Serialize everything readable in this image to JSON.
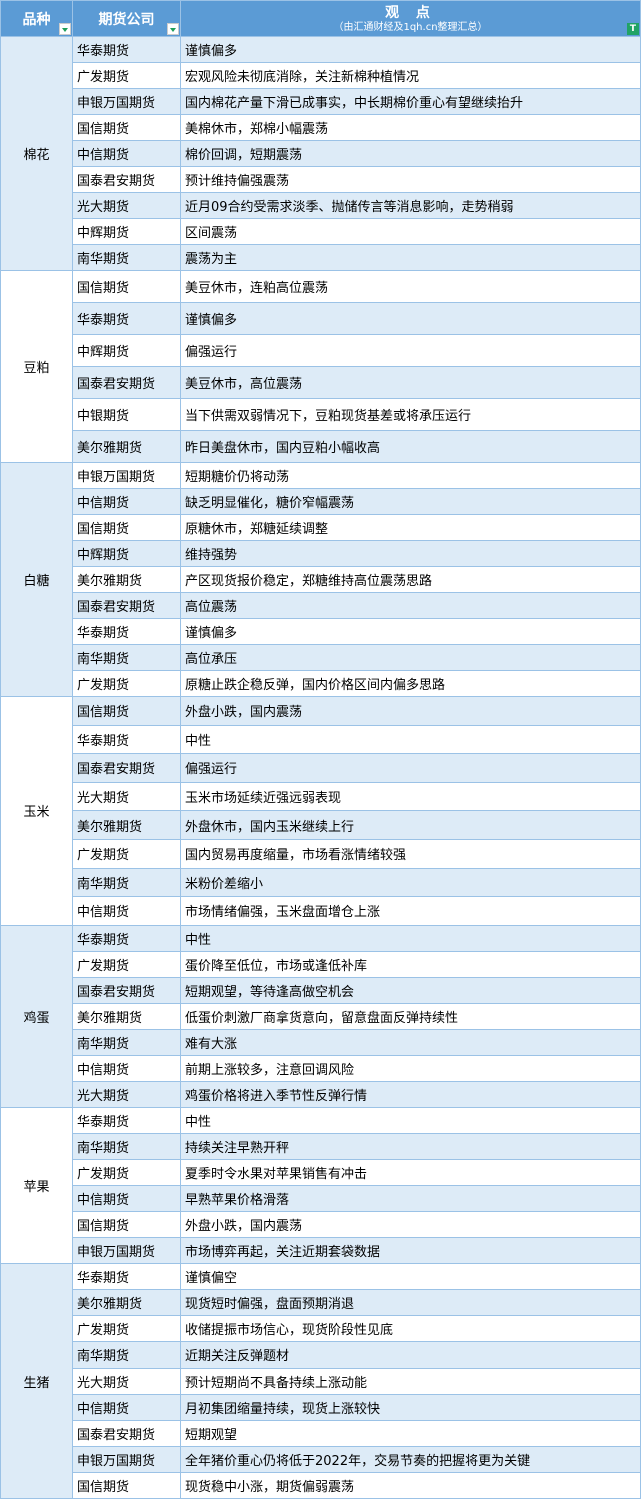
{
  "header": {
    "col_variety": "品种",
    "col_company": "期货公司",
    "col_view": "观    点",
    "col_view_sub": "（由汇通财经及1qh.cn整理汇总）",
    "filter_icon_text": "T"
  },
  "colors": {
    "header_bg": "#5b9bd5",
    "row_alt": "#ddebf7",
    "border": "#9bc2e6"
  },
  "groups": [
    {
      "variety": "棉花",
      "rows": [
        {
          "company": "华泰期货",
          "view": "谨慎偏多"
        },
        {
          "company": "广发期货",
          "view": "宏观风险未彻底消除，关注新棉种植情况"
        },
        {
          "company": "申银万国期货",
          "view": "国内棉花产量下滑已成事实，中长期棉价重心有望继续抬升"
        },
        {
          "company": "国信期货",
          "view": "美棉休市，郑棉小幅震荡"
        },
        {
          "company": "中信期货",
          "view": "棉价回调，短期震荡"
        },
        {
          "company": "国泰君安期货",
          "view": "预计维持偏强震荡"
        },
        {
          "company": "光大期货",
          "view": "近月09合约受需求淡季、抛储传言等消息影响，走势稍弱"
        },
        {
          "company": "中辉期货",
          "view": "区间震荡"
        },
        {
          "company": "南华期货",
          "view": "震荡为主"
        }
      ]
    },
    {
      "variety": "豆粕",
      "rows": [
        {
          "company": "国信期货",
          "view": "美豆休市，连粕高位震荡"
        },
        {
          "company": "华泰期货",
          "view": "谨慎偏多"
        },
        {
          "company": "中辉期货",
          "view": "偏强运行"
        },
        {
          "company": "国泰君安期货",
          "view": "美豆休市，高位震荡"
        },
        {
          "company": "中银期货",
          "view": "当下供需双弱情况下，豆粕现货基差或将承压运行"
        },
        {
          "company": "美尔雅期货",
          "view": "昨日美盘休市，国内豆粕小幅收高"
        }
      ]
    },
    {
      "variety": "白糖",
      "rows": [
        {
          "company": "申银万国期货",
          "view": "短期糖价仍将动荡"
        },
        {
          "company": "中信期货",
          "view": "缺乏明显催化，糖价窄幅震荡"
        },
        {
          "company": "国信期货",
          "view": "原糖休市，郑糖延续调整"
        },
        {
          "company": "中辉期货",
          "view": "维持强势"
        },
        {
          "company": "美尔雅期货",
          "view": "产区现货报价稳定，郑糖维持高位震荡思路"
        },
        {
          "company": "国泰君安期货",
          "view": "高位震荡"
        },
        {
          "company": "华泰期货",
          "view": "谨慎偏多"
        },
        {
          "company": "南华期货",
          "view": "高位承压"
        },
        {
          "company": "广发期货",
          "view": "原糖止跌企稳反弹，国内价格区间内偏多思路"
        }
      ]
    },
    {
      "variety": "玉米",
      "rows": [
        {
          "company": "国信期货",
          "view": "外盘小跌，国内震荡"
        },
        {
          "company": "华泰期货",
          "view": "中性"
        },
        {
          "company": "国泰君安期货",
          "view": "偏强运行"
        },
        {
          "company": "光大期货",
          "view": "玉米市场延续近强远弱表现"
        },
        {
          "company": "美尔雅期货",
          "view": "外盘休市，国内玉米继续上行"
        },
        {
          "company": "广发期货",
          "view": "国内贸易再度缩量，市场看涨情绪较强"
        },
        {
          "company": "南华期货",
          "view": "米粉价差缩小"
        },
        {
          "company": "中信期货",
          "view": "市场情绪偏强，玉米盘面增仓上涨"
        }
      ]
    },
    {
      "variety": "鸡蛋",
      "rows": [
        {
          "company": "华泰期货",
          "view": "中性"
        },
        {
          "company": "广发期货",
          "view": "蛋价降至低位，市场或逢低补库"
        },
        {
          "company": "国泰君安期货",
          "view": "短期观望，等待逢高做空机会"
        },
        {
          "company": "美尔雅期货",
          "view": "低蛋价刺激厂商拿货意向，留意盘面反弹持续性"
        },
        {
          "company": "南华期货",
          "view": "难有大涨"
        },
        {
          "company": "中信期货",
          "view": "前期上涨较多，注意回调风险"
        },
        {
          "company": "光大期货",
          "view": "鸡蛋价格将进入季节性反弹行情"
        }
      ]
    },
    {
      "variety": "苹果",
      "rows": [
        {
          "company": "华泰期货",
          "view": "中性"
        },
        {
          "company": "南华期货",
          "view": "持续关注早熟开秤"
        },
        {
          "company": "广发期货",
          "view": "夏季时令水果对苹果销售有冲击"
        },
        {
          "company": "中信期货",
          "view": "早熟苹果价格滑落"
        },
        {
          "company": "国信期货",
          "view": "外盘小跌，国内震荡"
        },
        {
          "company": "申银万国期货",
          "view": "市场博弈再起，关注近期套袋数据"
        }
      ]
    },
    {
      "variety": "生猪",
      "rows": [
        {
          "company": "华泰期货",
          "view": "谨慎偏空"
        },
        {
          "company": "美尔雅期货",
          "view": "现货短时偏强，盘面预期消退"
        },
        {
          "company": "广发期货",
          "view": "收储提振市场信心，现货阶段性见底"
        },
        {
          "company": "南华期货",
          "view": "近期关注反弹题材"
        },
        {
          "company": "光大期货",
          "view": "预计短期尚不具备持续上涨动能"
        },
        {
          "company": "中信期货",
          "view": "月初集团缩量持续，现货上涨较快"
        },
        {
          "company": "国泰君安期货",
          "view": "短期观望"
        },
        {
          "company": "申银万国期货",
          "view": "全年猪价重心仍将低于2022年，交易节奏的把握将更为关键"
        },
        {
          "company": "国信期货",
          "view": "现货稳中小涨，期货偏弱震荡"
        }
      ]
    }
  ]
}
